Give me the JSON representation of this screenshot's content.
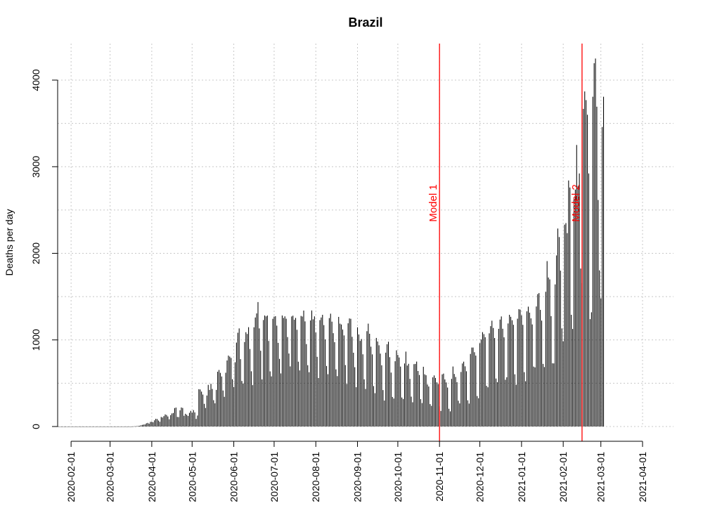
{
  "chart_data": {
    "type": "bar",
    "title": "Brazil",
    "xlabel": "",
    "ylabel": "Deaths per day",
    "x_start_date": "2020-01-22",
    "x_end_date": "2021-04-14",
    "xlim": [
      "2020-01-22",
      "2021-04-24"
    ],
    "ylim": [
      0,
      4400
    ],
    "y_ticks": [
      0,
      1000,
      2000,
      3000,
      4000
    ],
    "y_tick_labels": [
      "0",
      "1000",
      "2000",
      "3000",
      "4000"
    ],
    "x_ticks": [
      "2020-02-01",
      "2020-03-01",
      "2020-04-01",
      "2020-05-01",
      "2020-06-01",
      "2020-07-01",
      "2020-08-01",
      "2020-09-01",
      "2020-10-01",
      "2020-11-01",
      "2020-12-01",
      "2021-01-01",
      "2021-02-01",
      "2021-03-01",
      "2021-04-01"
    ],
    "grid": true,
    "bar_color": "#000000",
    "series": [
      {
        "values": [
          0,
          0,
          0,
          0,
          0,
          0,
          0,
          0,
          0,
          0,
          0,
          0,
          0,
          0,
          0,
          0,
          0,
          0,
          0,
          0,
          0,
          0,
          0,
          0,
          0,
          0,
          0,
          0,
          0,
          0,
          0,
          0,
          0,
          0,
          0,
          0,
          0,
          0,
          0,
          0,
          0,
          0,
          0,
          0,
          0,
          0,
          0,
          0,
          0,
          0,
          0,
          0,
          0,
          0,
          0,
          0,
          1,
          3,
          2,
          5,
          7,
          9,
          14,
          19,
          22,
          25,
          37,
          42,
          33,
          53,
          56,
          49,
          72,
          89,
          86,
          69,
          55,
          110,
          104,
          120,
          140,
          133,
          116,
          84,
          132,
          151,
          156,
          213,
          219,
          111,
          109,
          187,
          220,
          214,
          124,
          147,
          136,
          122,
          158,
          181,
          160,
          190,
          163,
          88,
          127,
          431,
          428,
          403,
          369,
          262,
          215,
          358,
          481,
          423,
          493,
          434,
          304,
          268,
          423,
          633,
          653,
          620,
          578,
          416,
          343,
          621,
          763,
          819,
          807,
          792,
          546,
          457,
          742,
          969,
          1083,
          1133,
          778,
          526,
          497,
          976,
          1089,
          1069,
          1147,
          895,
          638,
          478,
          1146,
          1259,
          1306,
          1437,
          1133,
          875,
          544,
          1230,
          1282,
          1272,
          1281,
          988,
          637,
          579,
          1244,
          1269,
          1274,
          1165,
          966,
          781,
          613,
          1282,
          1254,
          1272,
          1245,
          1033,
          843,
          694,
          1271,
          1280,
          1233,
          1254,
          1117,
          749,
          648,
          1277,
          1270,
          1339,
          1214,
          952,
          708,
          627,
          1225,
          1340,
          1238,
          1272,
          1085,
          805,
          560,
          1229,
          1259,
          1290,
          1171,
          1006,
          699,
          604,
          1252,
          1303,
          1211,
          1078,
          974,
          660,
          582,
          1266,
          1188,
          1178,
          1120,
          1052,
          710,
          492,
          1192,
          1248,
          1244,
          1036,
          852,
          685,
          454,
          1145,
          1063,
          989,
          1010,
          834,
          545,
          434,
          1101,
          1188,
          1071,
          922,
          833,
          467,
          385,
          1023,
          982,
          938,
          842,
          707,
          421,
          300,
          853,
          950,
          979,
          801,
          623,
          342,
          323,
          754,
          880,
          827,
          797,
          692,
          335,
          318,
          728,
          865,
          704,
          724,
          550,
          345,
          280,
          720,
          723,
          750,
          641,
          595,
          316,
          271,
          690,
          603,
          592,
          486,
          462,
          259,
          239,
          568,
          590,
          561,
          510,
          491,
          232,
          180,
          602,
          611,
          544,
          509,
          450,
          205,
          175,
          550,
          693,
          607,
          572,
          512,
          298,
          267,
          630,
          728,
          749,
          695,
          638,
          303,
          265,
          838,
          912,
          912,
          858,
          819,
          352,
          327,
          962,
          1005,
          1090,
          1067,
          1031,
          470,
          453,
          1076,
          1159,
          1222,
          1138,
          1022,
          554,
          512,
          1128,
          1235,
          1271,
          1129,
          1030,
          540,
          569,
          1190,
          1290,
          1267,
          1227,
          1175,
          603,
          482,
          1245,
          1355,
          1350,
          1284,
          1174,
          628,
          523,
          1330,
          1384,
          1315,
          1249,
          1179,
          692,
          683,
          1386,
          1529,
          1541,
          1347,
          1223,
          723,
          687,
          1556,
          1910,
          1721,
          1699,
          1275,
          730,
          729,
          1641,
          1976,
          2286,
          2188,
          1800,
          1133,
          985,
          2331,
          2349,
          2233,
          2841,
          2760,
          1290,
          1127,
          2648,
          2736,
          3251,
          2777,
          2922,
          1824,
          1657,
          3668,
          3869,
          3769,
          3600,
          2922,
          1240,
          1319,
          3808,
          4195,
          4249,
          3693,
          2616,
          1803,
          1480,
          3459,
          3808
        ]
      }
    ],
    "annotations": [
      {
        "label": "Model 1",
        "date": "2020-11-01",
        "color": "#ff0000"
      },
      {
        "label": "Model 2",
        "date": "2021-02-15",
        "color": "#ff0000"
      }
    ]
  }
}
